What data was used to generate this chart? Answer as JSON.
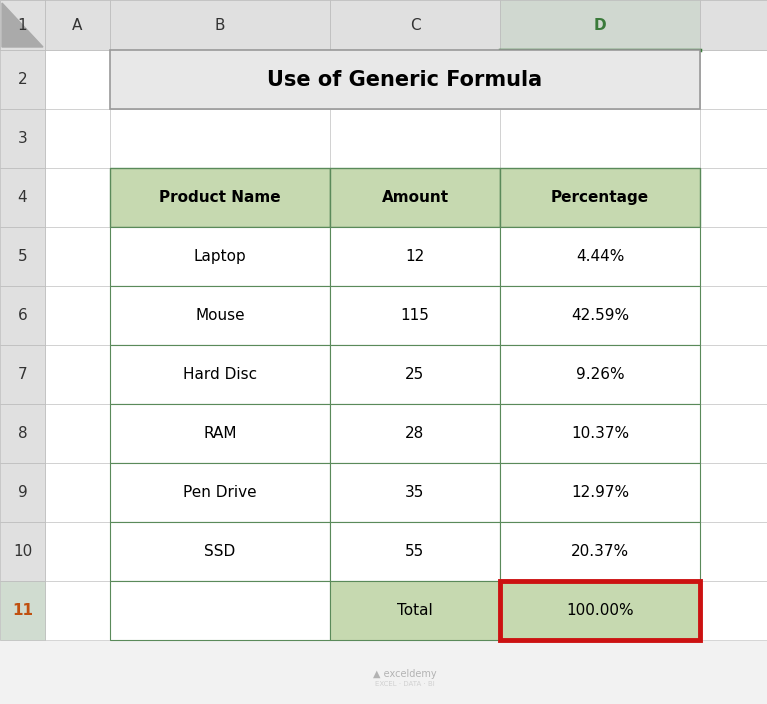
{
  "title": "Use of Generic Formula",
  "headers": [
    "Product Name",
    "Amount",
    "Percentage"
  ],
  "rows": [
    [
      "Laptop",
      "12",
      "4.44%"
    ],
    [
      "Mouse",
      "115",
      "42.59%"
    ],
    [
      "Hard Disc",
      "25",
      "9.26%"
    ],
    [
      "RAM",
      "28",
      "10.37%"
    ],
    [
      "Pen Drive",
      "35",
      "12.97%"
    ],
    [
      "SSD",
      "55",
      "20.37%"
    ]
  ],
  "total_row": [
    "",
    "Total",
    "100.00%"
  ],
  "header_fill": "#c6d9b0",
  "cell_fill": "#ffffff",
  "total_fill": "#c6d9b0",
  "table_border_color": "#5a8a5a",
  "title_fill": "#e8e8e8",
  "title_border": "#999999",
  "highlight_border": "#cc1111",
  "row_hdr_bg": "#e0e0e0",
  "col_hdr_bg": "#e0e0e0",
  "col_d_hdr_bg": "#d0d8d0",
  "col_d_border": "#3a7a3a",
  "spreadsheet_bg": "#f2f2f2",
  "row_num_color": "#c05010",
  "col_letter_color": "#333333",
  "col_d_letter_color": "#3a7a3a",
  "cell_grid_color": "#c8c8c8",
  "fig_bg": "#c0c0c0",
  "font_size_title": 15,
  "font_size_header": 11,
  "font_size_cell": 11,
  "font_size_row_num": 11,
  "font_size_watermark": 7
}
